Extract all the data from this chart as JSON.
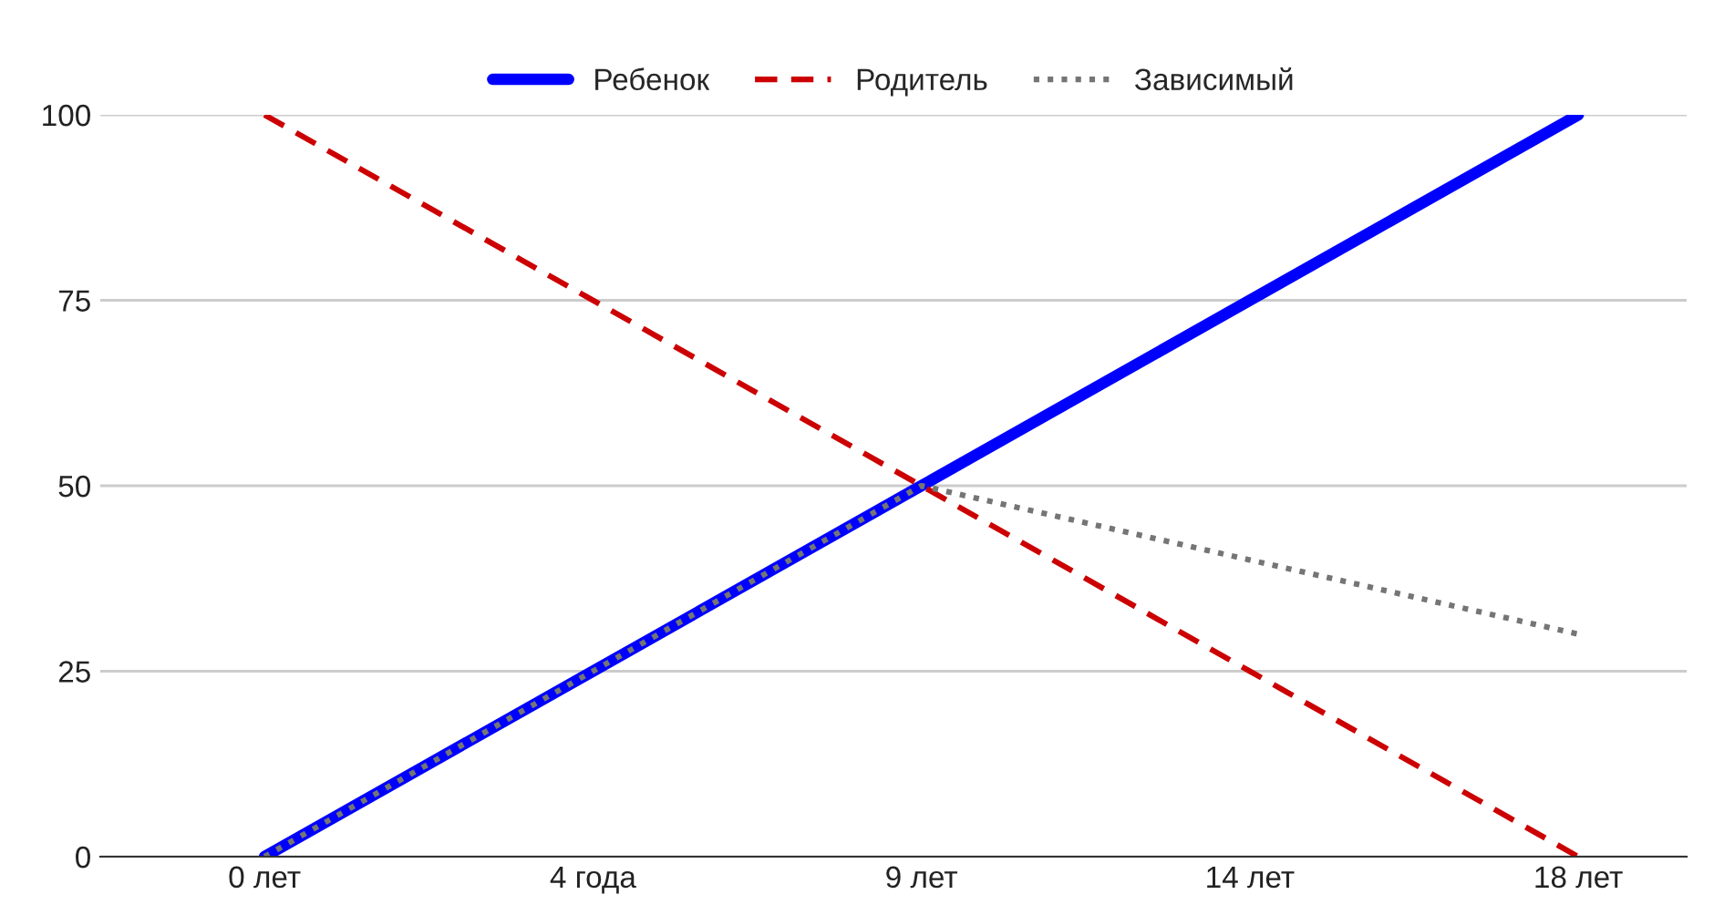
{
  "chart_data": {
    "type": "line",
    "categories": [
      "0 лет",
      "4 года",
      "9 лет",
      "14 лет",
      "18 лет"
    ],
    "series": [
      {
        "name": "Ребенок",
        "color": "#0000ff",
        "values": [
          0,
          25,
          50,
          75,
          100
        ],
        "line_style": "solid"
      },
      {
        "name": "Родитель",
        "color": "#cc0000",
        "values": [
          100,
          75,
          50,
          25,
          0
        ],
        "line_style": "dashed"
      },
      {
        "name": "Зависимый",
        "color": "#757575",
        "values": [
          0,
          25,
          50,
          40,
          30
        ],
        "line_style": "dotted"
      }
    ],
    "ylim": [
      0,
      100
    ],
    "yticks": [
      0,
      25,
      50,
      75,
      100
    ],
    "grid": "y",
    "legend": "top",
    "marker": "none"
  }
}
